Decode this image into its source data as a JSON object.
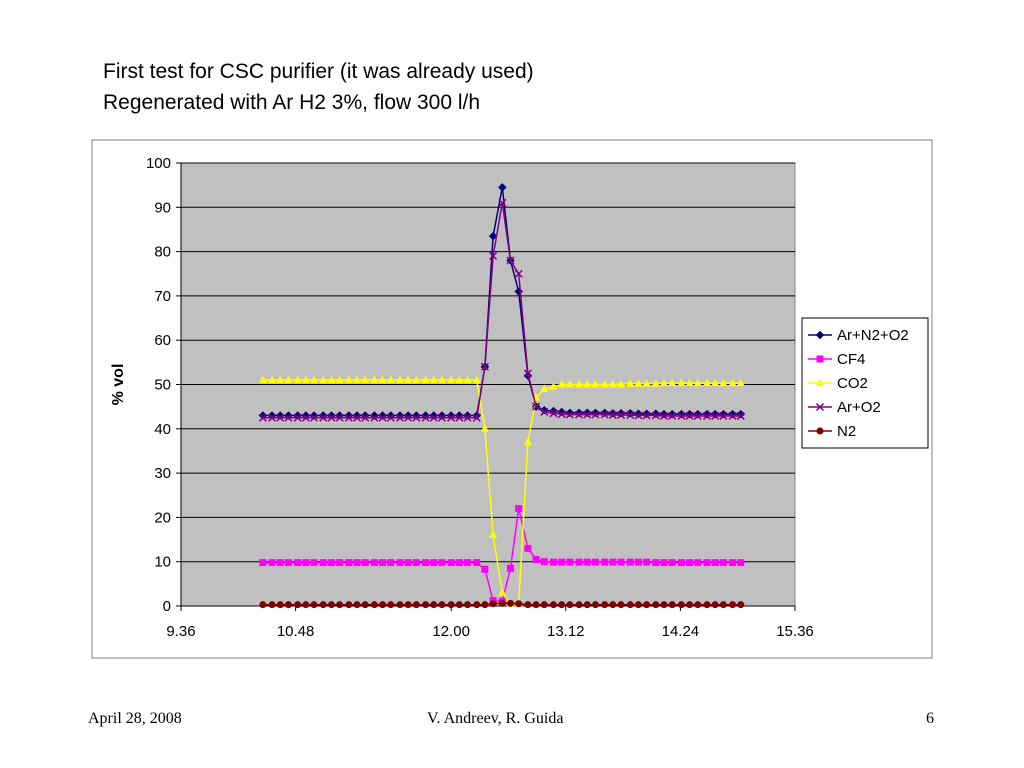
{
  "slide": {
    "title_line1": "First test for CSC purifier (it was already used)",
    "title_line2": "Regenerated with Ar H2 3%,  flow 300 l/h",
    "footer_date": "April 28, 2008",
    "footer_authors": "V. Andreev, R. Guida",
    "footer_page": "6"
  },
  "chart_data": {
    "type": "line",
    "title": "",
    "xlabel": "",
    "ylabel": "% vol",
    "xlim": [
      9.36,
      15.36
    ],
    "ylim": [
      0,
      100
    ],
    "x_ticks": [
      "9.36",
      "10.48",
      "12.00",
      "13.12",
      "14.24",
      "15.36"
    ],
    "y_ticks": [
      "0",
      "10",
      "20",
      "30",
      "40",
      "50",
      "60",
      "70",
      "80",
      "90",
      "100"
    ],
    "grid": "horizontal",
    "legend_position": "right",
    "plot_background": "#c0c0c0",
    "x": [
      10.16,
      10.25,
      10.33,
      10.41,
      10.5,
      10.58,
      10.66,
      10.75,
      10.83,
      10.91,
      11.0,
      11.08,
      11.16,
      11.25,
      11.33,
      11.41,
      11.5,
      11.58,
      11.66,
      11.75,
      11.83,
      11.91,
      12.0,
      12.08,
      12.16,
      12.25,
      12.33,
      12.41,
      12.5,
      12.58,
      12.66,
      12.75,
      12.83,
      12.91,
      13.0,
      13.08,
      13.16,
      13.25,
      13.33,
      13.41,
      13.5,
      13.58,
      13.66,
      13.75,
      13.83,
      13.91,
      14.0,
      14.08,
      14.16,
      14.25,
      14.33,
      14.41,
      14.5,
      14.58,
      14.66,
      14.75,
      14.83
    ],
    "series": [
      {
        "name": "Ar+N2+O2",
        "color": "#000080",
        "marker": "diamond",
        "values": [
          43,
          43,
          43,
          43,
          43,
          43,
          43,
          43,
          43,
          43,
          43,
          43,
          43,
          43,
          43,
          43,
          43,
          43,
          43,
          43,
          43,
          43,
          43,
          43,
          43,
          43,
          54,
          83.5,
          94.5,
          78,
          71,
          52,
          45,
          44.2,
          44,
          43.8,
          43.6,
          43.6,
          43.6,
          43.6,
          43.6,
          43.5,
          43.5,
          43.5,
          43.4,
          43.4,
          43.4,
          43.3,
          43.3,
          43.3,
          43.3,
          43.3,
          43.3,
          43.3,
          43.3,
          43.3,
          43.3
        ]
      },
      {
        "name": "CF4",
        "color": "#ff00ff",
        "marker": "square",
        "values": [
          9.8,
          9.8,
          9.8,
          9.8,
          9.8,
          9.8,
          9.8,
          9.8,
          9.8,
          9.8,
          9.8,
          9.8,
          9.8,
          9.8,
          9.8,
          9.8,
          9.8,
          9.8,
          9.8,
          9.8,
          9.8,
          9.8,
          9.8,
          9.8,
          9.8,
          9.8,
          8.3,
          1.2,
          1.1,
          8.5,
          22,
          13,
          10.5,
          10,
          9.9,
          9.9,
          9.9,
          9.9,
          9.9,
          9.9,
          9.9,
          9.9,
          9.9,
          9.9,
          9.9,
          9.9,
          9.8,
          9.8,
          9.8,
          9.8,
          9.8,
          9.8,
          9.8,
          9.8,
          9.8,
          9.8,
          9.8
        ]
      },
      {
        "name": "CO2",
        "color": "#ffff00",
        "marker": "triangle",
        "values": [
          51,
          51,
          51,
          51,
          51,
          51,
          51,
          51,
          51,
          51,
          51,
          51,
          51,
          51,
          51,
          51,
          51,
          51,
          51,
          51,
          51,
          51,
          51,
          51,
          51,
          51,
          40,
          16,
          3,
          0.5,
          0.5,
          37,
          47,
          49,
          49.5,
          50,
          50,
          50,
          50,
          50,
          50,
          50,
          50,
          50.2,
          50.2,
          50.2,
          50.2,
          50.3,
          50.3,
          50.3,
          50.3,
          50.3,
          50.3,
          50.3,
          50.3,
          50.3,
          50.3
        ]
      },
      {
        "name": "Ar+O2",
        "color": "#800080",
        "marker": "x",
        "values": [
          42.5,
          42.5,
          42.5,
          42.5,
          42.5,
          42.5,
          42.5,
          42.5,
          42.5,
          42.5,
          42.5,
          42.5,
          42.5,
          42.5,
          42.5,
          42.5,
          42.5,
          42.5,
          42.5,
          42.5,
          42.5,
          42.5,
          42.5,
          42.5,
          42.5,
          42.5,
          54,
          79,
          91,
          78,
          75,
          52.5,
          45,
          43.8,
          43.5,
          43.3,
          43.2,
          43.2,
          43.2,
          43.2,
          43.2,
          43.1,
          43.1,
          43.1,
          43,
          43,
          43,
          42.9,
          42.9,
          42.9,
          42.9,
          42.9,
          42.9,
          42.9,
          42.9,
          42.9,
          42.9
        ]
      },
      {
        "name": "N2",
        "color": "#800000",
        "marker": "circle",
        "values": [
          0.3,
          0.3,
          0.3,
          0.3,
          0.3,
          0.3,
          0.3,
          0.3,
          0.3,
          0.3,
          0.3,
          0.3,
          0.3,
          0.3,
          0.3,
          0.3,
          0.3,
          0.3,
          0.3,
          0.3,
          0.3,
          0.3,
          0.3,
          0.3,
          0.3,
          0.3,
          0.3,
          0.5,
          0.6,
          0.6,
          0.5,
          0.3,
          0.3,
          0.3,
          0.3,
          0.3,
          0.3,
          0.3,
          0.3,
          0.3,
          0.3,
          0.3,
          0.3,
          0.3,
          0.3,
          0.3,
          0.3,
          0.3,
          0.3,
          0.3,
          0.3,
          0.3,
          0.3,
          0.3,
          0.3,
          0.3,
          0.3
        ]
      }
    ]
  }
}
